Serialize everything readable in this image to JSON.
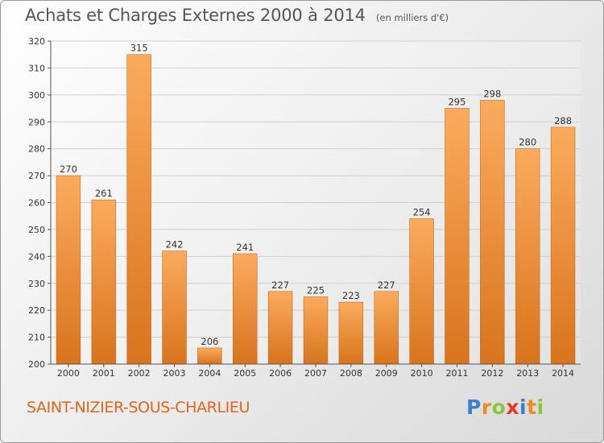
{
  "header": {
    "title": "Achats et Charges Externes 2000 à 2014",
    "unit": "(en milliers d'€)"
  },
  "footer": {
    "city": "SAINT-NIZIER-SOUS-CHARLIEU",
    "logo_letters": [
      "P",
      "r",
      "o",
      "x",
      "i",
      "t",
      "i"
    ],
    "logo_colors": [
      "#3a7fd0",
      "#f08a1c",
      "#8cc63f",
      "#e8352b",
      "#3a7fd0",
      "#f08a1c",
      "#8cc63f"
    ]
  },
  "chart_data": {
    "type": "bar",
    "title": "Achats et Charges Externes 2000 à 2014",
    "subtitle": "(en milliers d'€)",
    "xlabel": "",
    "ylabel": "",
    "categories": [
      "2000",
      "2001",
      "2002",
      "2003",
      "2004",
      "2005",
      "2006",
      "2007",
      "2008",
      "2009",
      "2010",
      "2011",
      "2012",
      "2013",
      "2014"
    ],
    "values": [
      270,
      261,
      315,
      242,
      206,
      241,
      227,
      225,
      223,
      227,
      254,
      295,
      298,
      280,
      288
    ],
    "ylim": [
      200,
      320
    ],
    "yticks": [
      200,
      210,
      220,
      230,
      240,
      250,
      260,
      270,
      280,
      290,
      300,
      310,
      320
    ],
    "grid": true,
    "colors": {
      "bar_top": "#fbab5e",
      "bar_bottom": "#d8741c",
      "grid": "#d0d0d0"
    }
  }
}
